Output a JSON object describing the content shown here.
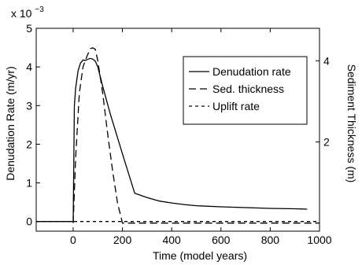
{
  "chart_data": {
    "type": "line",
    "xlabel": "Time (model years)",
    "ylabel_left": "Denudation Rate (m/yr)",
    "ylabel_right": "Sediment Thickness (m)",
    "y_exponent_label": "x 10",
    "y_exponent_power": "−3",
    "xlim": [
      -150,
      1000
    ],
    "ylim_left": [
      -0.25,
      5
    ],
    "ylim_right": [
      -0.2,
      4.8
    ],
    "x_ticks": [
      0,
      200,
      400,
      600,
      800,
      1000
    ],
    "x_tick_labels": [
      "0",
      "200",
      "400",
      "600",
      "800",
      "1000"
    ],
    "y_left_ticks": [
      0,
      1,
      2,
      3,
      4,
      5
    ],
    "y_left_tick_labels": [
      "0",
      "1",
      "2",
      "3",
      "4",
      "5"
    ],
    "y_right_ticks": [
      2,
      4
    ],
    "y_right_tick_labels": [
      "2",
      "4"
    ],
    "legend_position": "top-right",
    "grid": false,
    "series": [
      {
        "name": "Denudation rate",
        "style": "solid",
        "axis": "left",
        "x": [
          -150,
          0,
          5,
          10,
          20,
          30,
          40,
          50,
          60,
          70,
          80,
          90,
          100,
          120,
          150,
          200,
          250,
          300,
          350,
          400,
          450,
          500,
          600,
          700,
          800,
          900,
          950
        ],
        "y": [
          0,
          0,
          3.0,
          3.45,
          3.9,
          4.1,
          4.18,
          4.17,
          4.2,
          4.22,
          4.2,
          4.15,
          4.0,
          3.5,
          2.8,
          1.75,
          0.73,
          0.62,
          0.53,
          0.48,
          0.44,
          0.41,
          0.38,
          0.36,
          0.34,
          0.33,
          0.32
        ]
      },
      {
        "name": "Sed. thickness",
        "style": "dashed",
        "axis": "right",
        "x": [
          0,
          10,
          25,
          40,
          55,
          70,
          80,
          90,
          100,
          120,
          140,
          160,
          180,
          200,
          1000
        ],
        "y": [
          0,
          1.6,
          3.2,
          3.85,
          4.1,
          4.3,
          4.32,
          4.28,
          4.0,
          3.2,
          2.2,
          1.3,
          0.5,
          0,
          0
        ]
      },
      {
        "name": "Uplift rate",
        "style": "dotted",
        "axis": "left",
        "x": [
          -150,
          1000
        ],
        "y": [
          0,
          0
        ]
      }
    ]
  }
}
